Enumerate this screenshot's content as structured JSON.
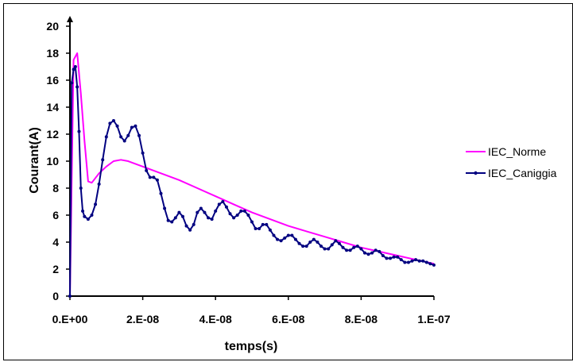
{
  "chart_data": {
    "type": "line",
    "title": "",
    "xlabel": "temps(s)",
    "ylabel": "Courant(A)",
    "xlim": [
      0,
      1e-07
    ],
    "ylim": [
      0,
      20
    ],
    "x_ticks": [
      0,
      2e-08,
      4e-08,
      6e-08,
      8e-08,
      1e-07
    ],
    "x_tick_labels": [
      "0.E+00",
      "2.E-08",
      "4.E-08",
      "6.E-08",
      "8.E-08",
      "1.E-07"
    ],
    "y_ticks": [
      0,
      2,
      4,
      6,
      8,
      10,
      12,
      14,
      16,
      18,
      20
    ],
    "y_tick_labels": [
      "0",
      "2",
      "4",
      "6",
      "8",
      "10",
      "12",
      "14",
      "16",
      "18",
      "20"
    ],
    "grid": false,
    "legend_position": "right",
    "series": [
      {
        "name": "IEC_Norme",
        "color": "#ff00ff",
        "marker": "none",
        "points": [
          [
            0,
            0
          ],
          [
            1e-09,
            17.5
          ],
          [
            2e-09,
            18.0
          ],
          [
            3e-09,
            15.0
          ],
          [
            4e-09,
            11.5
          ],
          [
            5e-09,
            8.5
          ],
          [
            6e-09,
            8.4
          ],
          [
            8e-09,
            9.1
          ],
          [
            1e-08,
            9.6
          ],
          [
            1.2e-08,
            10.0
          ],
          [
            1.4e-08,
            10.1
          ],
          [
            1.6e-08,
            10.0
          ],
          [
            1.8e-08,
            9.8
          ],
          [
            2e-08,
            9.6
          ],
          [
            2.5e-08,
            9.1
          ],
          [
            3e-08,
            8.6
          ],
          [
            3.5e-08,
            8.0
          ],
          [
            4e-08,
            7.4
          ],
          [
            4.5e-08,
            6.8
          ],
          [
            5e-08,
            6.2
          ],
          [
            5.5e-08,
            5.7
          ],
          [
            6e-08,
            5.2
          ],
          [
            6.5e-08,
            4.8
          ],
          [
            7e-08,
            4.4
          ],
          [
            7.5e-08,
            4.0
          ],
          [
            8e-08,
            3.6
          ],
          [
            8.5e-08,
            3.3
          ],
          [
            9e-08,
            3.0
          ],
          [
            9.5e-08,
            2.7
          ],
          [
            1e-07,
            2.4
          ]
        ]
      },
      {
        "name": "IEC_Caniggia",
        "color": "#000080",
        "marker": "dot",
        "points": [
          [
            0,
            0
          ],
          [
            5e-10,
            15.8
          ],
          [
            1e-09,
            16.8
          ],
          [
            1.5e-09,
            17.0
          ],
          [
            2e-09,
            15.5
          ],
          [
            2.5e-09,
            12.2
          ],
          [
            3e-09,
            8.0
          ],
          [
            3.5e-09,
            6.3
          ],
          [
            4e-09,
            5.9
          ],
          [
            5e-09,
            5.7
          ],
          [
            6e-09,
            6.0
          ],
          [
            7e-09,
            6.8
          ],
          [
            8e-09,
            8.3
          ],
          [
            9e-09,
            10.1
          ],
          [
            1e-08,
            11.8
          ],
          [
            1.1e-08,
            12.8
          ],
          [
            1.2e-08,
            13.0
          ],
          [
            1.3e-08,
            12.6
          ],
          [
            1.4e-08,
            11.8
          ],
          [
            1.5e-08,
            11.5
          ],
          [
            1.6e-08,
            11.9
          ],
          [
            1.7e-08,
            12.5
          ],
          [
            1.8e-08,
            12.6
          ],
          [
            1.9e-08,
            11.9
          ],
          [
            2e-08,
            10.6
          ],
          [
            2.1e-08,
            9.3
          ],
          [
            2.2e-08,
            8.8
          ],
          [
            2.3e-08,
            8.8
          ],
          [
            2.4e-08,
            8.6
          ],
          [
            2.5e-08,
            7.6
          ],
          [
            2.6e-08,
            6.5
          ],
          [
            2.7e-08,
            5.6
          ],
          [
            2.8e-08,
            5.5
          ],
          [
            2.9e-08,
            5.8
          ],
          [
            3e-08,
            6.2
          ],
          [
            3.1e-08,
            5.9
          ],
          [
            3.2e-08,
            5.2
          ],
          [
            3.3e-08,
            4.9
          ],
          [
            3.4e-08,
            5.3
          ],
          [
            3.5e-08,
            6.2
          ],
          [
            3.6e-08,
            6.5
          ],
          [
            3.7e-08,
            6.2
          ],
          [
            3.8e-08,
            5.8
          ],
          [
            3.9e-08,
            5.7
          ],
          [
            4e-08,
            6.3
          ],
          [
            4.1e-08,
            6.8
          ],
          [
            4.2e-08,
            7.0
          ],
          [
            4.3e-08,
            6.6
          ],
          [
            4.4e-08,
            6.1
          ],
          [
            4.5e-08,
            5.8
          ],
          [
            4.6e-08,
            6.0
          ],
          [
            4.7e-08,
            6.3
          ],
          [
            4.8e-08,
            6.3
          ],
          [
            4.9e-08,
            6.0
          ],
          [
            5e-08,
            5.5
          ],
          [
            5.1e-08,
            5.0
          ],
          [
            5.2e-08,
            5.0
          ],
          [
            5.3e-08,
            5.3
          ],
          [
            5.4e-08,
            5.3
          ],
          [
            5.5e-08,
            4.9
          ],
          [
            5.6e-08,
            4.5
          ],
          [
            5.7e-08,
            4.2
          ],
          [
            5.8e-08,
            4.1
          ],
          [
            5.9e-08,
            4.3
          ],
          [
            6e-08,
            4.5
          ],
          [
            6.1e-08,
            4.5
          ],
          [
            6.2e-08,
            4.2
          ],
          [
            6.3e-08,
            3.9
          ],
          [
            6.4e-08,
            3.7
          ],
          [
            6.5e-08,
            3.7
          ],
          [
            6.6e-08,
            4.0
          ],
          [
            6.7e-08,
            4.2
          ],
          [
            6.8e-08,
            4.0
          ],
          [
            6.9e-08,
            3.7
          ],
          [
            7e-08,
            3.5
          ],
          [
            7.1e-08,
            3.5
          ],
          [
            7.2e-08,
            3.8
          ],
          [
            7.3e-08,
            4.1
          ],
          [
            7.4e-08,
            3.9
          ],
          [
            7.5e-08,
            3.6
          ],
          [
            7.6e-08,
            3.4
          ],
          [
            7.7e-08,
            3.4
          ],
          [
            7.8e-08,
            3.6
          ],
          [
            7.9e-08,
            3.7
          ],
          [
            8e-08,
            3.5
          ],
          [
            8.1e-08,
            3.2
          ],
          [
            8.2e-08,
            3.1
          ],
          [
            8.3e-08,
            3.2
          ],
          [
            8.4e-08,
            3.4
          ],
          [
            8.5e-08,
            3.3
          ],
          [
            8.6e-08,
            3.0
          ],
          [
            8.7e-08,
            2.8
          ],
          [
            8.8e-08,
            2.8
          ],
          [
            8.9e-08,
            2.9
          ],
          [
            9e-08,
            2.9
          ],
          [
            9.1e-08,
            2.7
          ],
          [
            9.2e-08,
            2.5
          ],
          [
            9.3e-08,
            2.5
          ],
          [
            9.4e-08,
            2.6
          ],
          [
            9.5e-08,
            2.7
          ],
          [
            9.6e-08,
            2.6
          ],
          [
            9.7e-08,
            2.6
          ],
          [
            9.8e-08,
            2.5
          ],
          [
            9.9e-08,
            2.4
          ],
          [
            1e-07,
            2.3
          ]
        ]
      }
    ]
  }
}
